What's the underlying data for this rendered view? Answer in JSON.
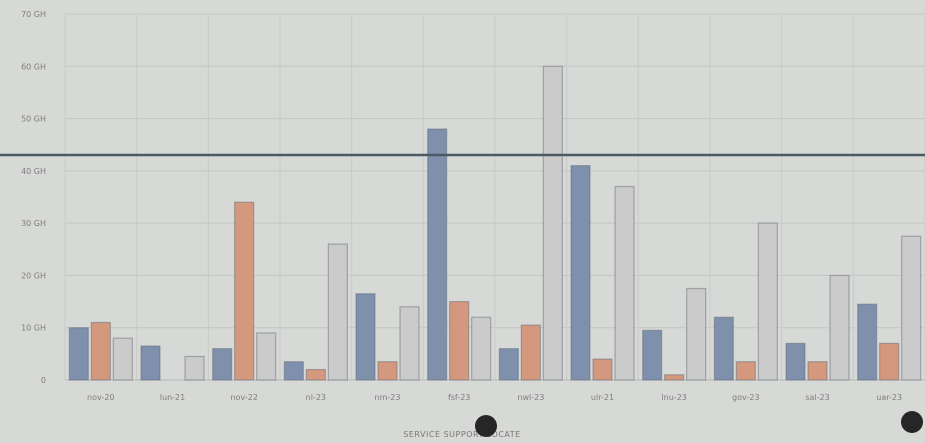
{
  "chart_data": {
    "type": "bar",
    "categories": [
      "nov-20",
      "lun-21",
      "nov-22",
      "nl-23",
      "nm-23",
      "fsf-23",
      "nwl-23",
      "ulr-21",
      "lnu-23",
      "gov-23",
      "sal-23",
      "uar-23"
    ],
    "series": [
      {
        "values": [
          10,
          6.5,
          6,
          3.5,
          16.5,
          48,
          6,
          41,
          9.5,
          12,
          7,
          14.5
        ],
        "color": "#7f90ad"
      },
      {
        "values": [
          11,
          0,
          34,
          2,
          3.5,
          15,
          10.5,
          4,
          1,
          3.5,
          3.5,
          7
        ],
        "color": "#d4987e"
      },
      {
        "values": [
          8,
          4.5,
          9,
          26,
          14,
          12,
          60,
          37,
          17.5,
          30,
          20,
          27.5
        ],
        "color": "#cbcbcb"
      }
    ],
    "ylim": [
      0,
      70
    ],
    "yticks": [
      "0",
      "10 GH",
      "20 GH",
      "30 GH",
      "40 GH",
      "50 GH",
      "60 GH",
      "70 GH"
    ],
    "legend": [
      "SERVICE",
      "SUPPORT",
      "LOCATE"
    ],
    "legend_position": "bottom",
    "grid": true
  }
}
